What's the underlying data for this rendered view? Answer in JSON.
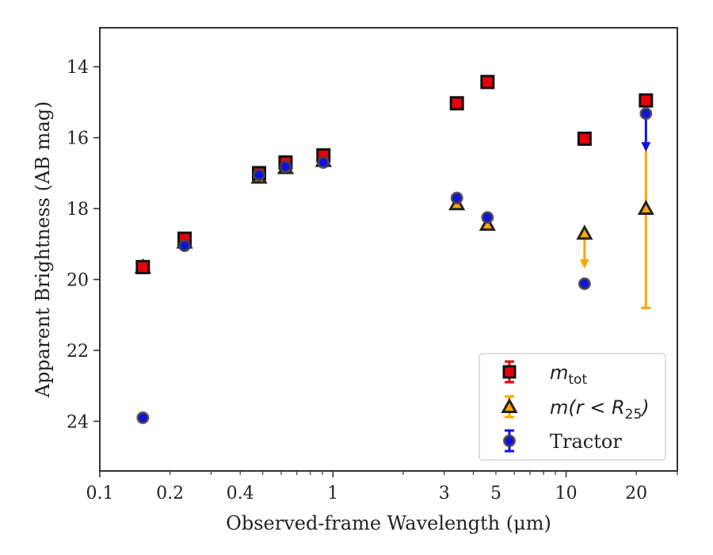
{
  "chart_data": {
    "type": "scatter",
    "title": "",
    "xlabel": "Observed-frame Wavelength (μm)",
    "ylabel": "Apparent Brightness (AB mag)",
    "xscale": "log",
    "xlim": [
      0.1,
      30
    ],
    "ylim": [
      25.4,
      12.9
    ],
    "y_inverted": true,
    "x_major_ticks": [
      0.1,
      1,
      10
    ],
    "x_minor_ticks": [
      0.2,
      0.3,
      0.4,
      0.5,
      0.6,
      0.7,
      0.8,
      0.9,
      2,
      3,
      4,
      5,
      6,
      7,
      8,
      9,
      20,
      30
    ],
    "x_tick_labels": [
      {
        "value": 0.1,
        "label": "0.1"
      },
      {
        "value": 0.2,
        "label": "0.2"
      },
      {
        "value": 0.4,
        "label": "0.4"
      },
      {
        "value": 1,
        "label": "1"
      },
      {
        "value": 3,
        "label": "3"
      },
      {
        "value": 5,
        "label": "5"
      },
      {
        "value": 10,
        "label": "10"
      },
      {
        "value": 20,
        "label": "20"
      }
    ],
    "y_ticks": [
      14,
      16,
      18,
      20,
      22,
      24
    ],
    "y_tick_labels": [
      "14",
      "16",
      "18",
      "20",
      "22",
      "24"
    ],
    "grid": false,
    "legend": {
      "placement": "lower-right",
      "entries": [
        {
          "name": "m_tot",
          "math": "m",
          "sub": "tot"
        },
        {
          "name": "m(r < R_25)",
          "math": "m(r < R",
          "sub": "25",
          "after": ")"
        },
        {
          "name": "Tractor",
          "math": "",
          "sub": "",
          "text": "Tractor"
        }
      ]
    },
    "series": [
      {
        "name": "m_tot",
        "marker": "square",
        "color": "#e8000b",
        "edge": "#111111",
        "points": [
          {
            "x": 0.153,
            "y": 19.65
          },
          {
            "x": 0.231,
            "y": 18.85
          },
          {
            "x": 0.482,
            "y": 17.0
          },
          {
            "x": 0.626,
            "y": 16.7
          },
          {
            "x": 0.91,
            "y": 16.5
          },
          {
            "x": 3.4,
            "y": 15.03
          },
          {
            "x": 4.6,
            "y": 14.43
          },
          {
            "x": 12.0,
            "y": 16.03
          },
          {
            "x": 22.0,
            "y": 14.95
          }
        ]
      },
      {
        "name": "m(r < R_25)",
        "marker": "triangle",
        "color": "#ffa500",
        "edge": "#222222",
        "points": [
          {
            "x": 0.153,
            "y": 19.65
          },
          {
            "x": 0.231,
            "y": 18.95
          },
          {
            "x": 0.482,
            "y": 17.12
          },
          {
            "x": 0.626,
            "y": 16.85
          },
          {
            "x": 0.91,
            "y": 16.65
          },
          {
            "x": 3.4,
            "y": 17.87
          },
          {
            "x": 4.6,
            "y": 18.45
          },
          {
            "x": 12.0,
            "y": 18.7,
            "upper_limit": true,
            "arrow_to": 19.65
          },
          {
            "x": 22.0,
            "y": 18.0,
            "yerr_low": 16.2,
            "yerr_high": 20.8
          }
        ]
      },
      {
        "name": "Tractor",
        "marker": "circle",
        "color": "#1010e0",
        "edge": "#444444",
        "points": [
          {
            "x": 0.153,
            "y": 23.9
          },
          {
            "x": 0.231,
            "y": 19.05
          },
          {
            "x": 0.482,
            "y": 17.05
          },
          {
            "x": 0.626,
            "y": 16.82
          },
          {
            "x": 0.91,
            "y": 16.7
          },
          {
            "x": 3.4,
            "y": 17.7
          },
          {
            "x": 4.6,
            "y": 18.25
          },
          {
            "x": 12.0,
            "y": 20.12
          },
          {
            "x": 22.0,
            "y": 15.32,
            "upper_limit": true,
            "arrow_to": 16.35
          }
        ]
      }
    ]
  }
}
